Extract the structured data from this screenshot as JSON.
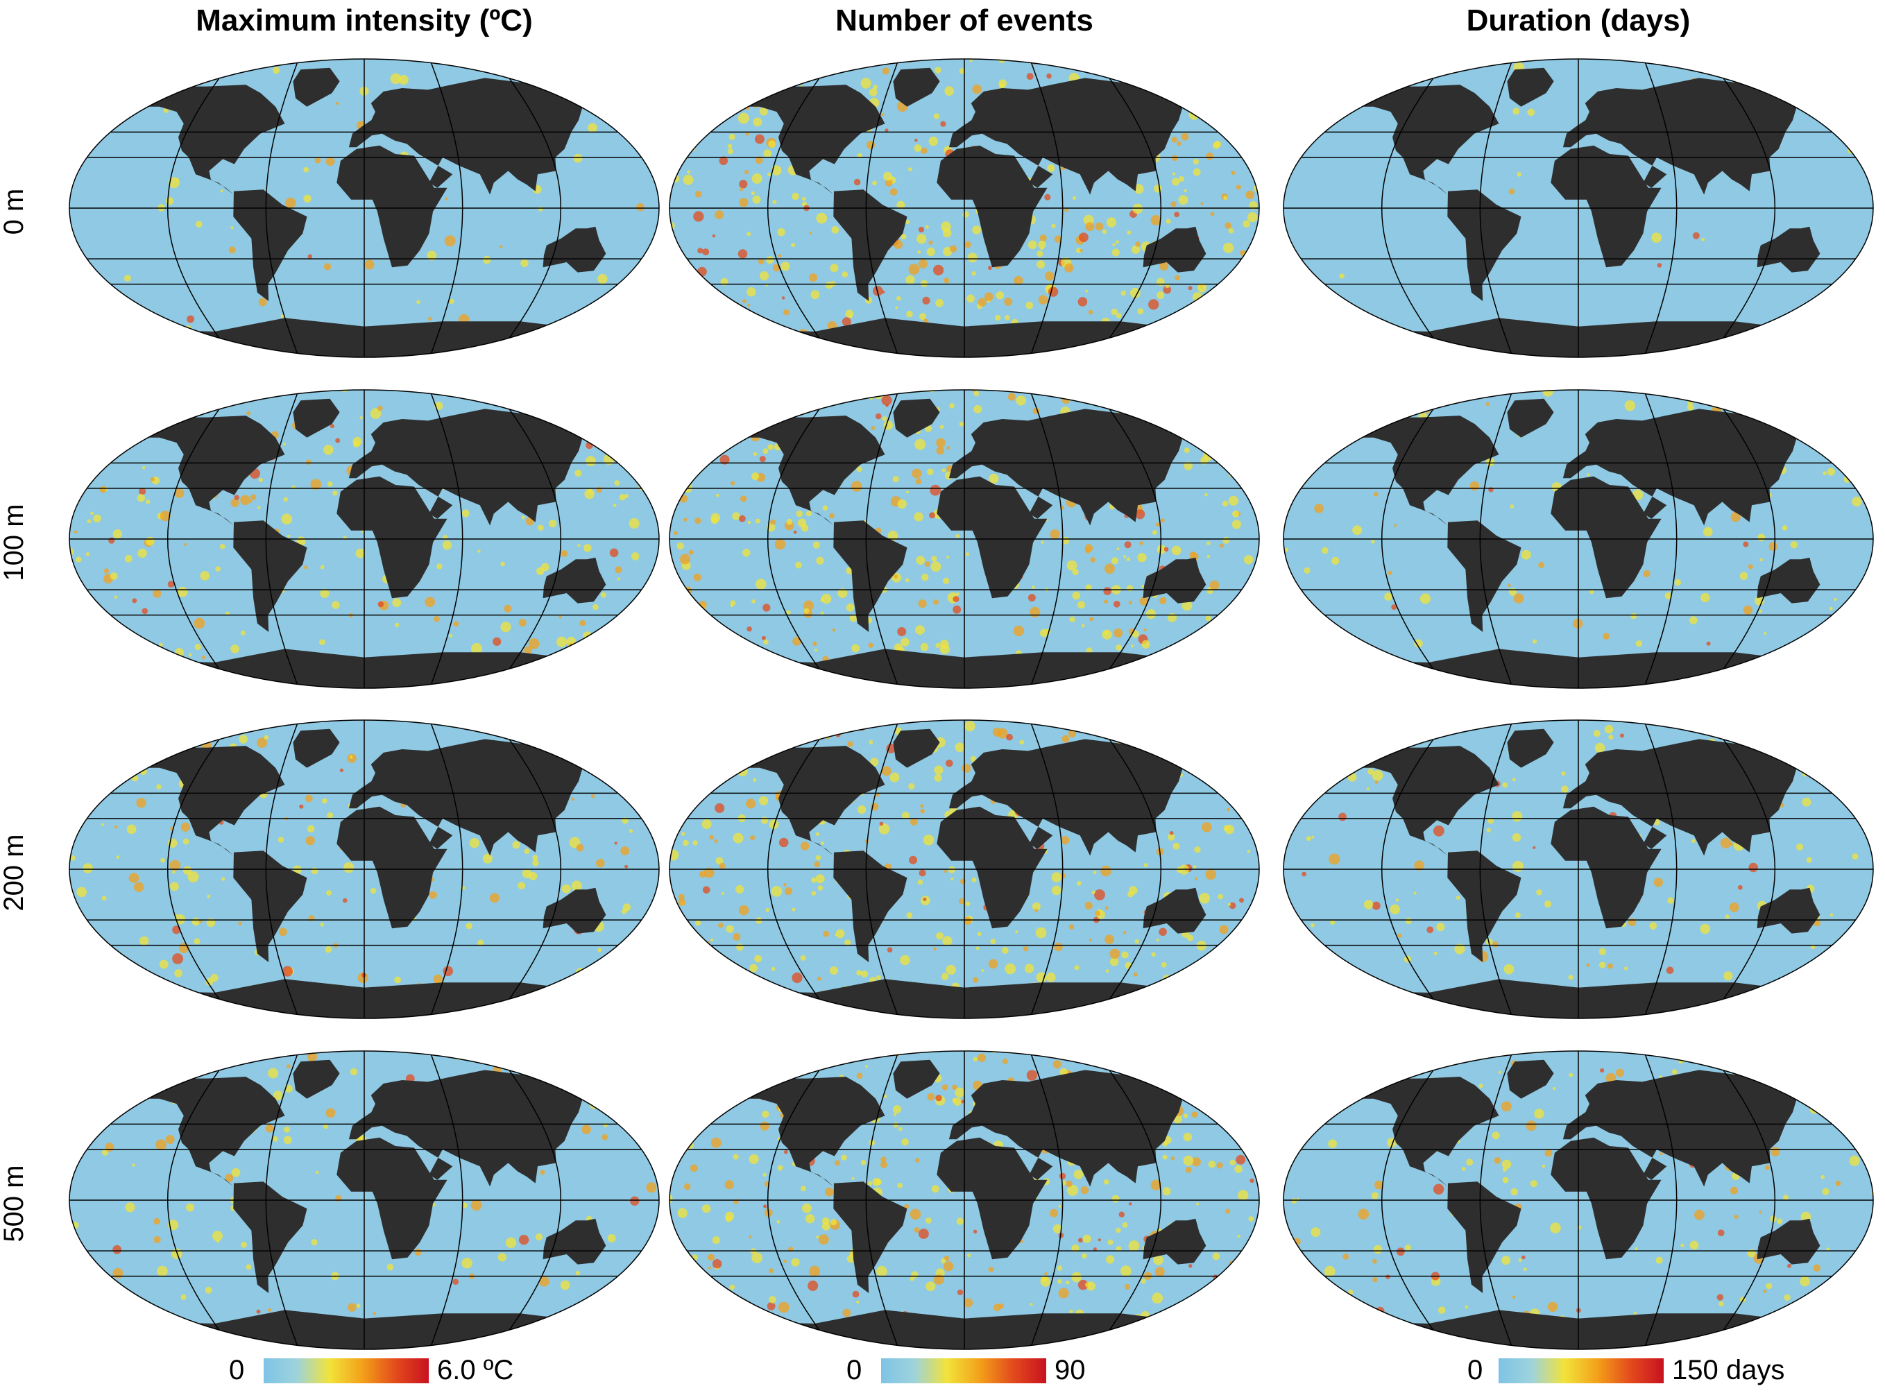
{
  "columns": [
    {
      "title": "Maximum intensity (ºC)",
      "colorbar": {
        "min": "0",
        "max": "6.0 ºC"
      }
    },
    {
      "title": "Number of events",
      "colorbar": {
        "min": "0",
        "max": "90"
      }
    },
    {
      "title": "Duration (days)",
      "colorbar": {
        "min": "0",
        "max": "150 days"
      }
    }
  ],
  "rows": [
    {
      "label": "0 m"
    },
    {
      "label": "100 m"
    },
    {
      "label": "200 m"
    },
    {
      "label": "500 m"
    }
  ],
  "colorscale": [
    "#7ec3e6",
    "#9ed3dc",
    "#f2e33a",
    "#f3a01a",
    "#e34a1c",
    "#c81220"
  ],
  "land_color": "#2e2e2e",
  "ocean_base_color": "#8fc9e3"
}
